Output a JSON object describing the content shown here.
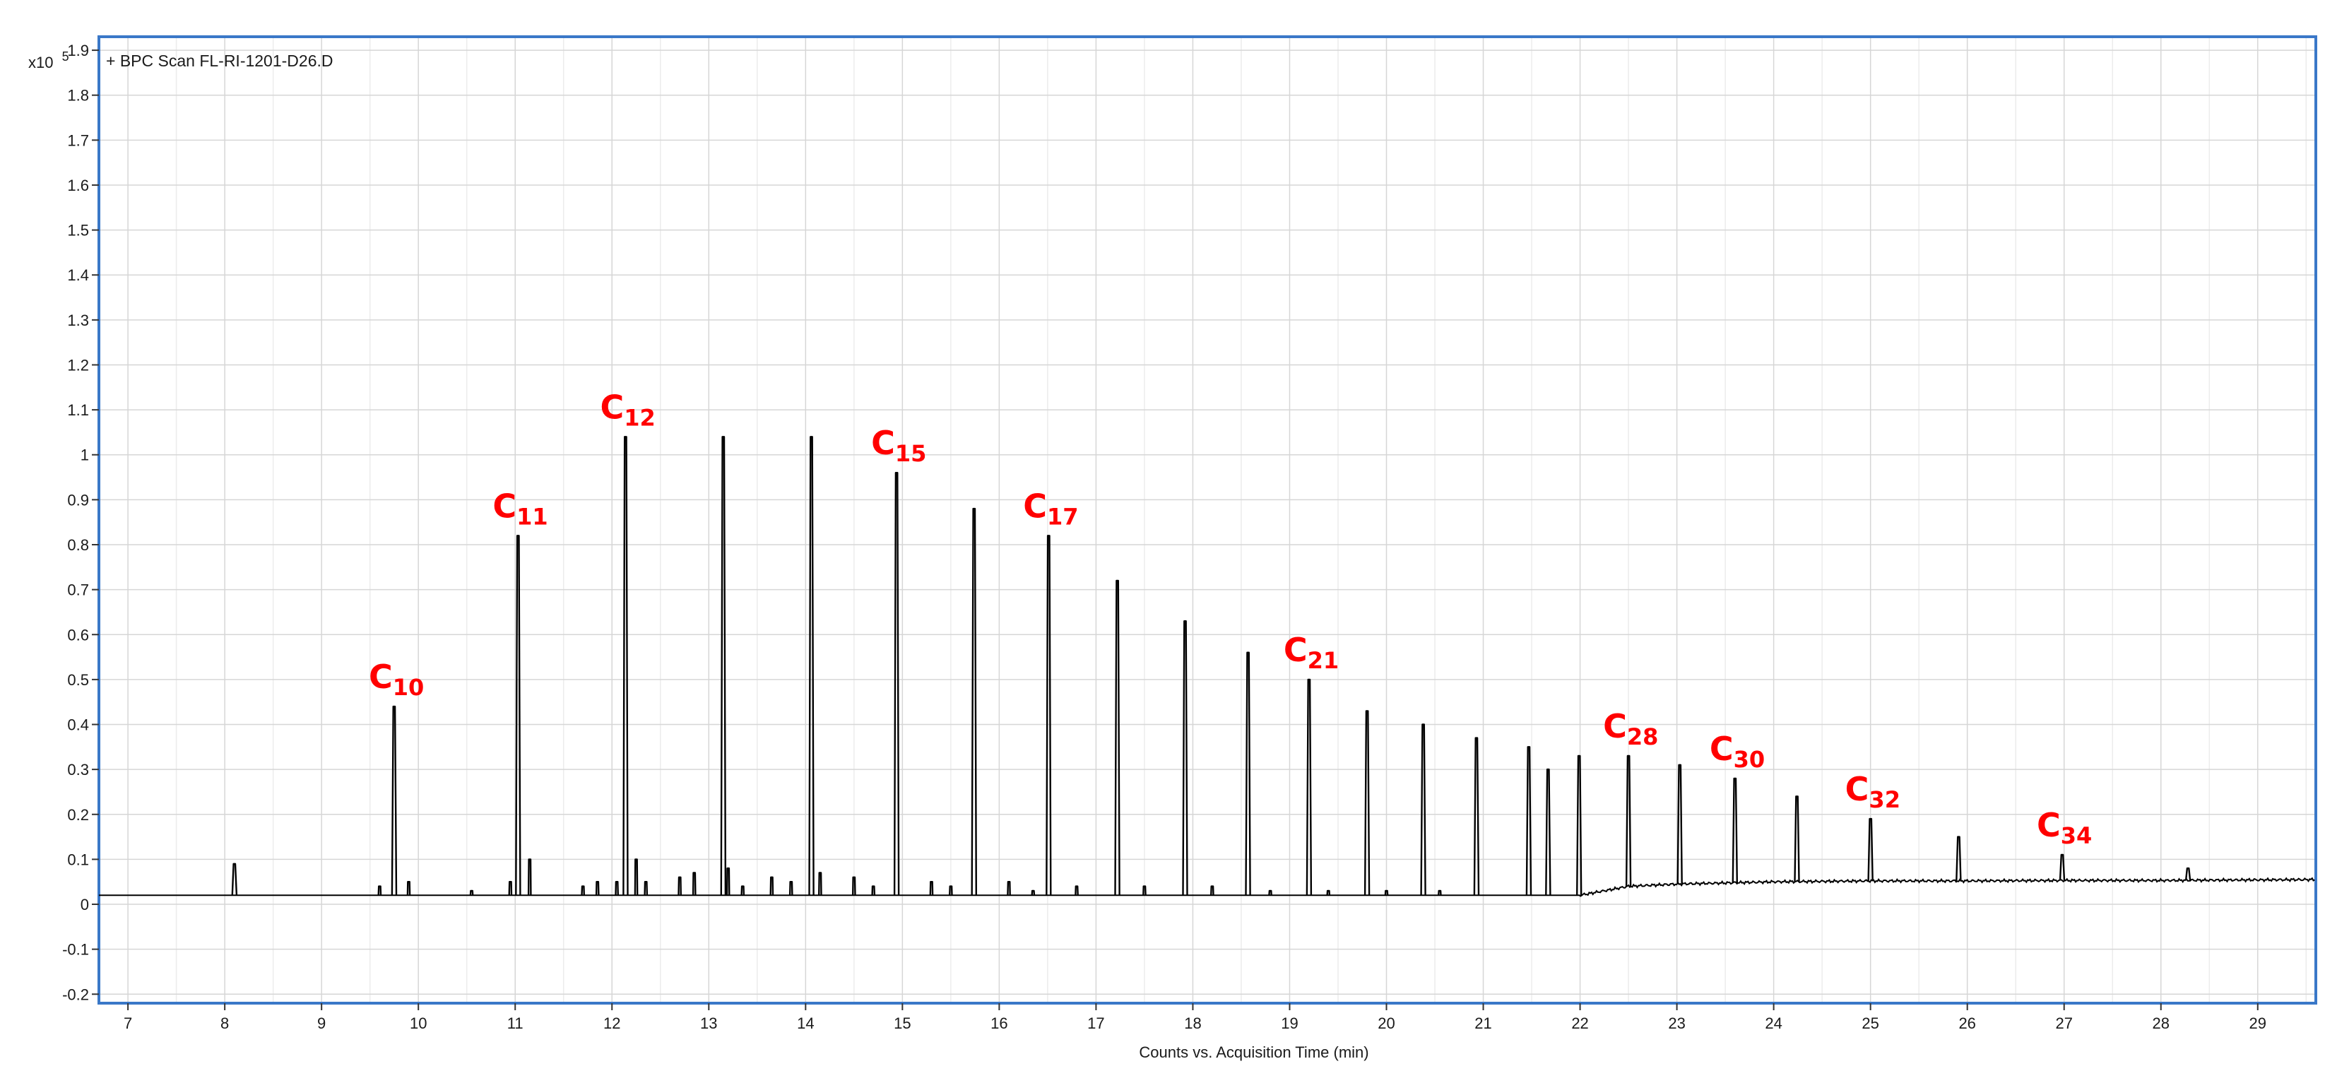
{
  "chart_data": {
    "type": "line",
    "title": "+ BPC Scan FL-RI-1201-D26.D",
    "xlabel": "Counts vs. Acquisition Time (min)",
    "y_multiplier": {
      "base": "x10",
      "exponent": "5"
    },
    "xlim": [
      6.7,
      29.6
    ],
    "ylim": [
      -0.22,
      1.93
    ],
    "x_ticks": [
      7,
      8,
      9,
      10,
      11,
      12,
      13,
      14,
      15,
      16,
      17,
      18,
      19,
      20,
      21,
      22,
      23,
      24,
      25,
      26,
      27,
      28,
      29
    ],
    "x_tick_labels": [
      "7",
      "8",
      "9",
      "10",
      "11",
      "12",
      "13",
      "14",
      "15",
      "16",
      "17",
      "18",
      "19",
      "20",
      "21",
      "22",
      "23",
      "24",
      "25",
      "26",
      "27",
      "28",
      "29"
    ],
    "y_ticks": [
      -0.2,
      -0.1,
      0,
      0.1,
      0.2,
      0.3,
      0.4,
      0.5,
      0.6,
      0.7,
      0.8,
      0.9,
      1,
      1.1,
      1.2,
      1.3,
      1.4,
      1.5,
      1.6,
      1.7,
      1.8,
      1.9
    ],
    "y_tick_labels": [
      "-0.2",
      "-0.1",
      "0",
      "0.1",
      "0.2",
      "0.3",
      "0.4",
      "0.5",
      "0.6",
      "0.7",
      "0.8",
      "0.9",
      "1",
      "1.1",
      "1.2",
      "1.3",
      "1.4",
      "1.5",
      "1.6",
      "1.7",
      "1.8",
      "1.9"
    ],
    "grid": true,
    "colors": {
      "trace": "#000000",
      "frame": "#3a78c8",
      "annotation": "#ff0000",
      "grid": "#dcdcdc"
    },
    "baseline": [
      [
        6.7,
        0.02
      ],
      [
        22.0,
        0.02
      ],
      [
        22.5,
        0.04
      ],
      [
        23.0,
        0.045
      ],
      [
        24.0,
        0.05
      ],
      [
        25.0,
        0.052
      ],
      [
        26.0,
        0.052
      ],
      [
        27.0,
        0.053
      ],
      [
        28.0,
        0.053
      ],
      [
        29.6,
        0.055
      ]
    ],
    "major_peaks": [
      {
        "x": 8.1,
        "y": 0.09
      },
      {
        "x": 9.75,
        "y": 0.44
      },
      {
        "x": 11.03,
        "y": 0.82
      },
      {
        "x": 12.14,
        "y": 1.04
      },
      {
        "x": 13.15,
        "y": 1.04
      },
      {
        "x": 14.06,
        "y": 1.04
      },
      {
        "x": 14.94,
        "y": 0.96
      },
      {
        "x": 15.74,
        "y": 0.88
      },
      {
        "x": 16.51,
        "y": 0.82
      },
      {
        "x": 17.22,
        "y": 0.72
      },
      {
        "x": 17.92,
        "y": 0.63
      },
      {
        "x": 18.57,
        "y": 0.56
      },
      {
        "x": 19.2,
        "y": 0.5
      },
      {
        "x": 19.8,
        "y": 0.43
      },
      {
        "x": 20.38,
        "y": 0.4
      },
      {
        "x": 20.93,
        "y": 0.37
      },
      {
        "x": 21.47,
        "y": 0.35
      },
      {
        "x": 21.67,
        "y": 0.3
      },
      {
        "x": 21.99,
        "y": 0.33
      },
      {
        "x": 22.5,
        "y": 0.33
      },
      {
        "x": 23.03,
        "y": 0.31
      },
      {
        "x": 23.6,
        "y": 0.28
      },
      {
        "x": 24.24,
        "y": 0.24
      },
      {
        "x": 25.0,
        "y": 0.19
      },
      {
        "x": 25.91,
        "y": 0.15
      },
      {
        "x": 26.98,
        "y": 0.11
      },
      {
        "x": 28.28,
        "y": 0.08
      }
    ],
    "minor_peaks": [
      {
        "x": 9.6,
        "y": 0.04
      },
      {
        "x": 9.9,
        "y": 0.05
      },
      {
        "x": 10.55,
        "y": 0.03
      },
      {
        "x": 10.95,
        "y": 0.05
      },
      {
        "x": 11.15,
        "y": 0.1
      },
      {
        "x": 11.7,
        "y": 0.04
      },
      {
        "x": 11.85,
        "y": 0.05
      },
      {
        "x": 12.05,
        "y": 0.05
      },
      {
        "x": 12.25,
        "y": 0.1
      },
      {
        "x": 12.35,
        "y": 0.05
      },
      {
        "x": 12.7,
        "y": 0.06
      },
      {
        "x": 12.85,
        "y": 0.07
      },
      {
        "x": 13.2,
        "y": 0.08
      },
      {
        "x": 13.35,
        "y": 0.04
      },
      {
        "x": 13.65,
        "y": 0.06
      },
      {
        "x": 13.85,
        "y": 0.05
      },
      {
        "x": 14.15,
        "y": 0.07
      },
      {
        "x": 14.5,
        "y": 0.06
      },
      {
        "x": 14.7,
        "y": 0.04
      },
      {
        "x": 15.3,
        "y": 0.05
      },
      {
        "x": 15.5,
        "y": 0.04
      },
      {
        "x": 16.1,
        "y": 0.05
      },
      {
        "x": 16.35,
        "y": 0.03
      },
      {
        "x": 16.8,
        "y": 0.04
      },
      {
        "x": 17.5,
        "y": 0.04
      },
      {
        "x": 18.2,
        "y": 0.04
      },
      {
        "x": 18.8,
        "y": 0.03
      },
      {
        "x": 19.4,
        "y": 0.03
      },
      {
        "x": 20.0,
        "y": 0.03
      },
      {
        "x": 20.55,
        "y": 0.03
      }
    ],
    "peak_labels": [
      {
        "text": "C",
        "sub": "10",
        "x": 9.75,
        "y": 0.44
      },
      {
        "text": "C",
        "sub": "11",
        "x": 11.03,
        "y": 0.82
      },
      {
        "text": "C",
        "sub": "12",
        "x": 12.14,
        "y": 1.04
      },
      {
        "text": "C",
        "sub": "15",
        "x": 14.94,
        "y": 0.96
      },
      {
        "text": "C",
        "sub": "17",
        "x": 16.51,
        "y": 0.82
      },
      {
        "text": "C",
        "sub": "21",
        "x": 19.2,
        "y": 0.5
      },
      {
        "text": "C",
        "sub": "28",
        "x": 22.5,
        "y": 0.33
      },
      {
        "text": "C",
        "sub": "30",
        "x": 23.6,
        "y": 0.28
      },
      {
        "text": "C",
        "sub": "32",
        "x": 25.0,
        "y": 0.19
      },
      {
        "text": "C",
        "sub": "34",
        "x": 26.98,
        "y": 0.11
      }
    ]
  }
}
